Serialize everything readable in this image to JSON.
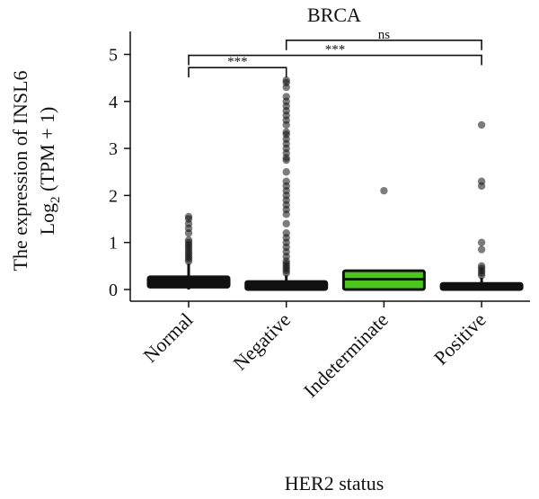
{
  "chart_data": {
    "type": "box",
    "title": "BRCA",
    "ylabel_line1": "The expression of INSL6",
    "ylabel_line2_prefix": "Log",
    "ylabel_line2_sub": "2",
    "ylabel_line2_suffix": " (TPM + 1)",
    "xlabel": "HER2 status",
    "ylim": [
      -0.25,
      5.5
    ],
    "yticks": [
      0,
      1,
      2,
      3,
      4,
      5
    ],
    "categories": [
      "Normal",
      "Negative",
      "Indeterminate",
      "Positive"
    ],
    "boxes": [
      {
        "category": "Normal",
        "q1": 0.05,
        "median": 0.17,
        "q3": 0.27,
        "whisker_low": 0.0,
        "whisker_high": 0.55,
        "color": "#111111",
        "outliers": [
          0.6,
          0.65,
          0.7,
          0.75,
          0.8,
          0.85,
          0.9,
          0.95,
          1.0,
          1.05,
          1.2,
          1.3,
          1.4,
          1.5,
          1.55
        ]
      },
      {
        "category": "Negative",
        "q1": 0.0,
        "median": 0.05,
        "q3": 0.17,
        "whisker_low": 0.0,
        "whisker_high": 0.3,
        "color": "#111111",
        "outliers": [
          0.35,
          0.4,
          0.45,
          0.5,
          0.55,
          0.6,
          0.7,
          0.8,
          0.9,
          1.0,
          1.1,
          1.2,
          1.4,
          1.6,
          1.7,
          1.8,
          1.9,
          2.0,
          2.1,
          2.2,
          2.3,
          2.5,
          2.75,
          2.8,
          2.9,
          3.0,
          3.1,
          3.2,
          3.3,
          3.35,
          3.5,
          3.6,
          3.7,
          3.8,
          3.9,
          4.0,
          4.1,
          4.3,
          4.4,
          4.45
        ]
      },
      {
        "category": "Indeterminate",
        "q1": 0.0,
        "median": 0.22,
        "q3": 0.4,
        "whisker_low": 0.0,
        "whisker_high": 0.4,
        "color": "#4cc51f",
        "outliers": [
          2.1
        ]
      },
      {
        "category": "Positive",
        "q1": 0.0,
        "median": 0.05,
        "q3": 0.13,
        "whisker_low": 0.0,
        "whisker_high": 0.25,
        "color": "#111111",
        "outliers": [
          0.3,
          0.35,
          0.4,
          0.45,
          0.5,
          0.85,
          1.0,
          2.2,
          2.3,
          3.5
        ]
      }
    ],
    "significance": [
      {
        "from": 0,
        "to": 1,
        "y": 4.72,
        "label": "***"
      },
      {
        "from": 0,
        "to": 3,
        "y": 4.98,
        "label": "***"
      },
      {
        "from": 1,
        "to": 3,
        "y": 5.3,
        "label": "ns"
      }
    ]
  }
}
